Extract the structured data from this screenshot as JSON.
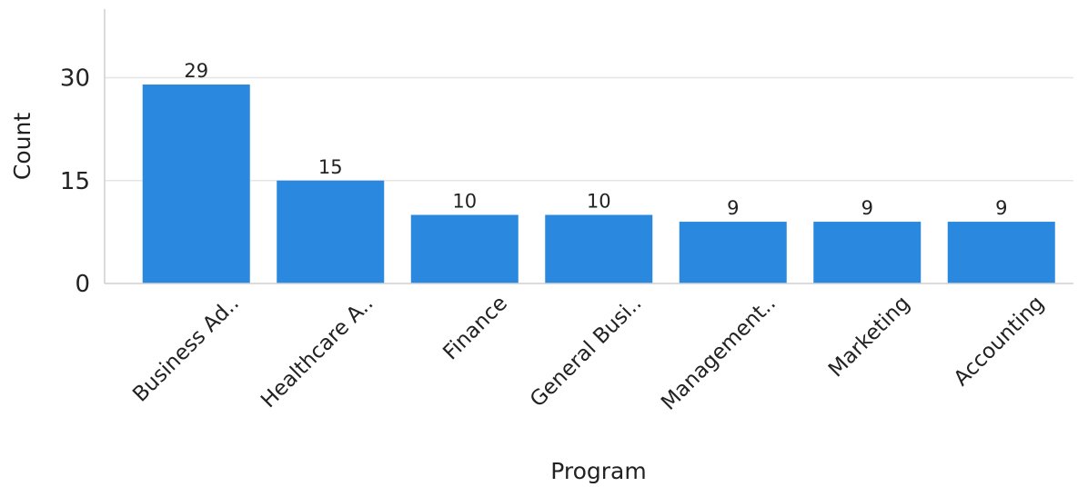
{
  "chart_data": {
    "type": "bar",
    "categories": [
      "Business Ad..",
      "Healthcare A..",
      "Finance",
      "General Busi..",
      "Management..",
      "Marketing",
      "Accounting"
    ],
    "values": [
      29,
      15,
      10,
      10,
      9,
      9,
      9
    ],
    "xlabel": "Program",
    "ylabel": "Count",
    "ylim": [
      0,
      40
    ],
    "yticks": [
      0,
      15,
      30
    ],
    "bar_color": "#2A88DE",
    "grid": true,
    "legend": "none"
  }
}
